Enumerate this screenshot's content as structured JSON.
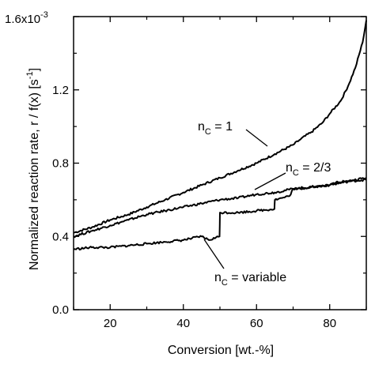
{
  "chart_data": {
    "type": "line",
    "xlabel": "Conversion [wt.-%]",
    "ylabel": "Normalized reaction rate, r / f(x) [s",
    "ylabel_sup": "-1",
    "ylabel_tail": "]",
    "xlim": [
      10,
      90
    ],
    "ylim": [
      0,
      1.6
    ],
    "y_scale_multiplier": "x10",
    "y_scale_exponent": "-3",
    "x_ticks": [
      20,
      40,
      60,
      80
    ],
    "y_ticks": [
      0.0,
      0.4,
      0.8,
      1.2,
      1.6
    ],
    "y_tick_labels": [
      "0.0",
      "0.4",
      "0.8",
      "1.2",
      "1.6"
    ],
    "grid": false,
    "series": [
      {
        "label_main": "n",
        "label_sub": "C",
        "label_rest": " = 1",
        "x": [
          10,
          15,
          20,
          25,
          30,
          35,
          40,
          45,
          50,
          55,
          60,
          65,
          70,
          72,
          75,
          78,
          80,
          83,
          85,
          87,
          89,
          90
        ],
        "y": [
          0.42,
          0.45,
          0.49,
          0.52,
          0.56,
          0.6,
          0.64,
          0.68,
          0.72,
          0.76,
          0.8,
          0.85,
          0.9,
          0.93,
          0.97,
          1.02,
          1.07,
          1.14,
          1.22,
          1.32,
          1.46,
          1.58
        ]
      },
      {
        "label_main": "n",
        "label_sub": "C",
        "label_rest": " = 2/3",
        "x": [
          10,
          15,
          20,
          25,
          30,
          35,
          40,
          45,
          50,
          55,
          60,
          65,
          70,
          75,
          80,
          85,
          90
        ],
        "y": [
          0.4,
          0.43,
          0.46,
          0.49,
          0.52,
          0.54,
          0.56,
          0.58,
          0.6,
          0.61,
          0.63,
          0.64,
          0.66,
          0.67,
          0.68,
          0.7,
          0.71
        ]
      },
      {
        "label_main": "n",
        "label_sub": "C",
        "label_rest": " = variable",
        "x": [
          10,
          15,
          20,
          25,
          30,
          35,
          40,
          45,
          47,
          49.9,
          50,
          55,
          60,
          64.9,
          65,
          67,
          69,
          70,
          72,
          75,
          80,
          82,
          85,
          90
        ],
        "y": [
          0.33,
          0.34,
          0.34,
          0.35,
          0.36,
          0.37,
          0.38,
          0.4,
          0.38,
          0.4,
          0.53,
          0.53,
          0.54,
          0.55,
          0.6,
          0.61,
          0.62,
          0.66,
          0.66,
          0.67,
          0.68,
          0.7,
          0.7,
          0.72
        ]
      }
    ]
  }
}
